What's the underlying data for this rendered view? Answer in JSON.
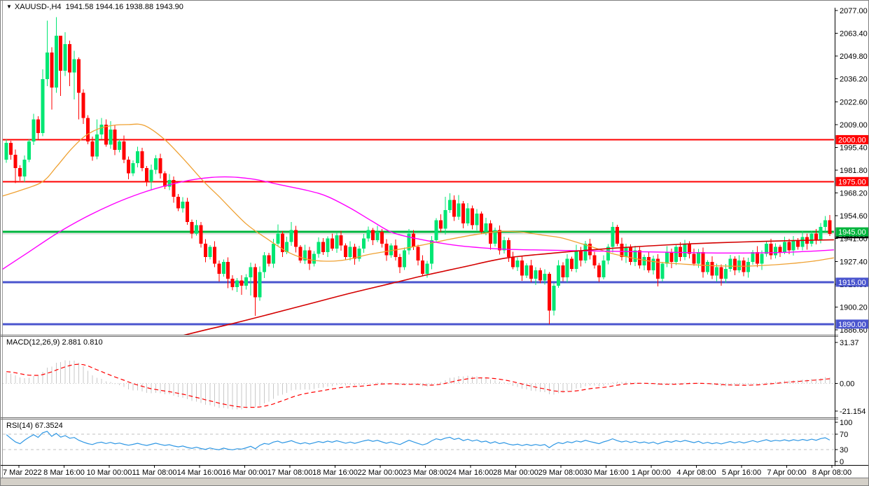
{
  "header": {
    "dropdown_icon": "▼",
    "text": "XAUUSD-,H4  1941.58 1944.16 1938.88 1943.90",
    "quote": {
      "open": "1941.58",
      "high": "1944.16",
      "low": "1938.88",
      "close": "1943.90"
    }
  },
  "indicators": {
    "macd_label": "MACD(12,26,9) 2.881 0.810",
    "rsi_label": "RSI(14) 67.3524"
  },
  "chart_data": {
    "type": "candlestick",
    "symbol": "XAUUSD-",
    "timeframe": "H4",
    "title": "XAUUSD- H4 candlestick chart with MACD and RSI",
    "grid": "off",
    "price_axis_ticks": [
      2077.0,
      2063.4,
      2049.8,
      2036.2,
      2022.6,
      2009.0,
      1995.4,
      1981.8,
      1968.2,
      1954.6,
      1941.0,
      1927.4,
      1913.8,
      1900.2,
      1886.6
    ],
    "time_labels": [
      "7 Mar 2022",
      "8 Mar 16:00",
      "10 Mar 00:00",
      "11 Mar 08:00",
      "14 Mar 16:00",
      "16 Mar 00:00",
      "17 Mar 08:00",
      "18 Mar 16:00",
      "22 Mar 00:00",
      "23 Mar 08:00",
      "24 Mar 16:00",
      "28 Mar 00:00",
      "29 Mar 08:00",
      "30 Mar 16:00",
      "1 Apr 00:00",
      "4 Apr 08:00",
      "5 Apr 16:00",
      "7 Apr 00:00",
      "8 Apr 08:00"
    ],
    "levels": [
      {
        "price": 2000.0,
        "label": "2000.00",
        "color": "#ff0000",
        "width": 2
      },
      {
        "price": 1975.0,
        "label": "1975.00",
        "color": "#ff0000",
        "width": 2
      },
      {
        "price": 1945.0,
        "label": "1945.00",
        "color": "#00b43c",
        "width": 3
      },
      {
        "price": 1915.0,
        "label": "1915.00",
        "color": "#4a55ce",
        "width": 3
      },
      {
        "price": 1890.0,
        "label": "1890.00",
        "color": "#4a55ce",
        "width": 3
      }
    ],
    "bid": {
      "price": 1943.9,
      "label": "1943.90"
    },
    "pre_closes": [
      1952,
      1955,
      1953,
      1958,
      1962,
      1960,
      1965,
      1969,
      1966,
      1972,
      1975,
      1973,
      1978,
      1982,
      1980,
      1985,
      1988,
      1986,
      1990,
      1993,
      1991,
      1995,
      1997,
      1994,
      1998,
      2001,
      1997,
      1995,
      1999,
      1996
    ],
    "candles": {
      "first_open": 1988,
      "closes": [
        1998,
        1991,
        1983,
        1978,
        1988,
        1999,
        2012,
        2004,
        2036,
        2052,
        2031,
        2062,
        2041,
        2057,
        2040,
        2048,
        2028,
        2013,
        1999,
        1990,
        2003,
        2009,
        1997,
        2006,
        1994,
        1999,
        1988,
        1980,
        1986,
        1993,
        1983,
        1975,
        1982,
        1989,
        1980,
        1972,
        1976,
        1966,
        1959,
        1963,
        1951,
        1944,
        1949,
        1938,
        1930,
        1936,
        1926,
        1920,
        1927,
        1917,
        1912,
        1916,
        1913,
        1918,
        1924,
        1906,
        1921,
        1931,
        1926,
        1938,
        1944,
        1933,
        1939,
        1946,
        1936,
        1928,
        1934,
        1926,
        1932,
        1939,
        1933,
        1941,
        1935,
        1943,
        1937,
        1930,
        1936,
        1929,
        1935,
        1941,
        1946,
        1940,
        1945,
        1938,
        1931,
        1937,
        1930,
        1924,
        1934,
        1944,
        1936,
        1928,
        1920,
        1926,
        1940,
        1952,
        1947,
        1958,
        1964,
        1954,
        1962,
        1950,
        1959,
        1949,
        1956,
        1945,
        1950,
        1938,
        1946,
        1934,
        1940,
        1930,
        1924,
        1928,
        1919,
        1925,
        1917,
        1922,
        1916,
        1920,
        1898,
        1913,
        1925,
        1918,
        1929,
        1923,
        1934,
        1928,
        1938,
        1931,
        1925,
        1918,
        1928,
        1936,
        1948,
        1938,
        1930,
        1936,
        1927,
        1934,
        1925,
        1930,
        1922,
        1929,
        1917,
        1926,
        1933,
        1927,
        1936,
        1930,
        1938,
        1932,
        1926,
        1933,
        1921,
        1927,
        1919,
        1924,
        1917,
        1923,
        1929,
        1922,
        1928,
        1921,
        1927,
        1933,
        1926,
        1932,
        1938,
        1931,
        1936,
        1933,
        1939,
        1934,
        1940,
        1936,
        1942,
        1938,
        1944,
        1940,
        1948,
        1952,
        1943.9
      ],
      "wick_up": [
        2.2,
        1.4,
        3.1,
        1.8,
        2.6,
        1.2,
        3.4,
        2.0,
        1.6,
        2.8
      ],
      "wick_dn": [
        1.8,
        2.9,
        1.3,
        2.4,
        3.2,
        1.5,
        2.1,
        3.6,
        1.7,
        2.5
      ],
      "overrides": {
        "2": [
          null,
          1974
        ],
        "8": [
          2042,
          2002
        ],
        "9": [
          2071,
          2032
        ],
        "10": [
          2055,
          2018
        ],
        "11": [
          2073,
          2028
        ],
        "12": [
          2052,
          2026
        ],
        "13": [
          2064,
          2038
        ],
        "14": [
          2059,
          2032
        ],
        "15": [
          2053,
          2024
        ],
        "16": [
          2049,
          2012
        ],
        "20": [
          2012,
          null
        ],
        "21": [
          2013,
          null
        ],
        "23": [
          2011,
          null
        ],
        "32": [
          null,
          1970
        ],
        "47": [
          null,
          1915.5
        ],
        "49": [
          null,
          1911.5
        ],
        "52": [
          null,
          1907.5
        ],
        "54": [
          null,
          1907
        ],
        "55": [
          1926,
          1895
        ],
        "60": [
          1949.5,
          null
        ],
        "63": [
          1951,
          null
        ],
        "82": [
          1948.5,
          null
        ],
        "97": [
          1966,
          null
        ],
        "98": [
          1968,
          null
        ],
        "100": [
          1967,
          null
        ],
        "120": [
          1921,
          1890
        ],
        "134": [
          1951,
          null
        ],
        "144": [
          null,
          1912.5
        ],
        "158": [
          null,
          1913
        ],
        "181": [
          1954.5,
          null
        ]
      }
    },
    "ma_paths": {
      "orange_ma": [
        [
          0,
          1966
        ],
        [
          30,
          1970
        ],
        [
          60,
          1975
        ],
        [
          80,
          1984
        ],
        [
          100,
          1994
        ],
        [
          120,
          2002
        ],
        [
          140,
          2006.5
        ],
        [
          160,
          2008.5
        ],
        [
          182,
          2009
        ],
        [
          205,
          2008.5
        ],
        [
          233,
          2000.5
        ],
        [
          260,
          1989
        ],
        [
          290,
          1975
        ],
        [
          312,
          1966
        ],
        [
          350,
          1950
        ],
        [
          380,
          1941
        ],
        [
          410,
          1933
        ],
        [
          440,
          1928.5
        ],
        [
          470,
          1927.5
        ],
        [
          495,
          1928.5
        ],
        [
          525,
          1931.5
        ],
        [
          560,
          1934
        ],
        [
          600,
          1937
        ],
        [
          640,
          1940.5
        ],
        [
          680,
          1943.5
        ],
        [
          715,
          1945.3
        ],
        [
          745,
          1944.8
        ],
        [
          775,
          1943
        ],
        [
          800,
          1941.5
        ],
        [
          825,
          1938.5
        ],
        [
          845,
          1936
        ],
        [
          870,
          1932.5
        ],
        [
          890,
          1930.5
        ],
        [
          920,
          1928
        ],
        [
          950,
          1926.5
        ],
        [
          985,
          1925.5
        ],
        [
          1020,
          1924.8
        ],
        [
          1055,
          1924.5
        ],
        [
          1090,
          1925
        ],
        [
          1125,
          1926
        ],
        [
          1160,
          1927.5
        ],
        [
          1190,
          1929.5
        ]
      ],
      "magenta_ma": [
        [
          0,
          1922
        ],
        [
          40,
          1933
        ],
        [
          80,
          1944
        ],
        [
          120,
          1953.5
        ],
        [
          160,
          1961.5
        ],
        [
          200,
          1968
        ],
        [
          240,
          1973
        ],
        [
          280,
          1976.5
        ],
        [
          320,
          1977.8
        ],
        [
          360,
          1976.5
        ],
        [
          400,
          1973
        ],
        [
          440,
          1969.5
        ],
        [
          467,
          1966
        ],
        [
          500,
          1959
        ],
        [
          530,
          1951.5
        ],
        [
          560,
          1944.5
        ],
        [
          600,
          1940.5
        ],
        [
          650,
          1937
        ],
        [
          713,
          1934.8
        ],
        [
          760,
          1934.3
        ],
        [
          820,
          1933.8
        ],
        [
          890,
          1933.3
        ],
        [
          960,
          1932.8
        ],
        [
          1030,
          1932.4
        ],
        [
          1100,
          1932.6
        ],
        [
          1150,
          1933.3
        ],
        [
          1190,
          1934.3
        ]
      ],
      "trend_line": [
        [
          248,
          1882
        ],
        [
          290,
          1886.3
        ],
        [
          328,
          1890
        ],
        [
          380,
          1895.5
        ],
        [
          440,
          1902
        ],
        [
          500,
          1908.5
        ],
        [
          560,
          1914.5
        ],
        [
          607,
          1919.2
        ],
        [
          660,
          1924
        ],
        [
          720,
          1929.3
        ],
        [
          780,
          1932
        ],
        [
          850,
          1934.5
        ],
        [
          920,
          1936.5
        ],
        [
          990,
          1938
        ],
        [
          1060,
          1939
        ],
        [
          1130,
          1939.8
        ],
        [
          1190,
          1940.3
        ]
      ]
    },
    "macd": {
      "params": [
        12,
        26,
        9
      ],
      "last_values": [
        "2.881",
        "0.810"
      ],
      "axis": [
        {
          "v": 31.37,
          "label": "31.37"
        },
        {
          "v": 0,
          "label": "0.00"
        },
        {
          "v": -21.154,
          "label": "-21.154"
        }
      ]
    },
    "rsi": {
      "period": 14,
      "last_value": "67.3524",
      "axis": [
        {
          "v": 100,
          "label": "100"
        },
        {
          "v": 70,
          "label": "70"
        },
        {
          "v": 30,
          "label": "30"
        },
        {
          "v": 0,
          "label": "0"
        }
      ],
      "dashed_levels": [
        70,
        30
      ]
    },
    "colors": {
      "bull": "#00e673",
      "bear": "#ff0000",
      "bid_line": "#c8c8c8",
      "bid_label_bg": "#000000",
      "ma_fast": "#efa132",
      "ma_slow": "#ff00ff",
      "trend": "#d40000",
      "macd_hist": "#c8c8c8",
      "macd_signal": "#ff0000",
      "rsi_line": "#2e97e4",
      "dashed_levels": "#c0c0c0",
      "axis_text": "#000000",
      "label_text": "#ffffff"
    }
  }
}
